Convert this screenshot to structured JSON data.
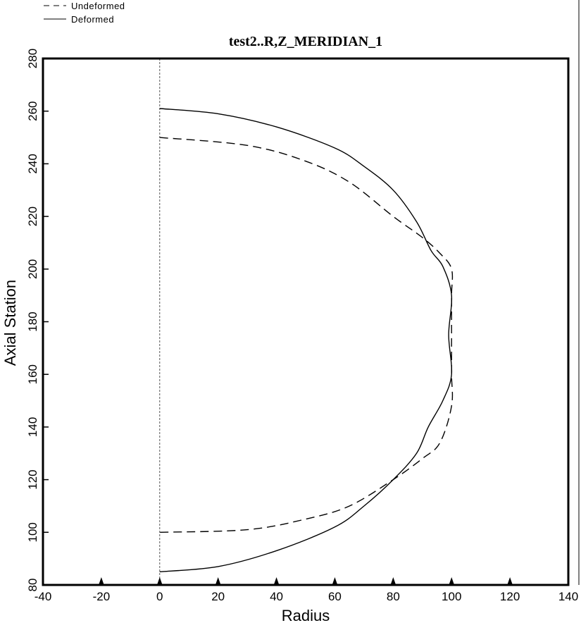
{
  "chart_data": {
    "type": "line",
    "title": "test2..R,Z_MERIDIAN_1",
    "xlabel": "Radius",
    "ylabel": "Axial Station",
    "xlim": [
      -40,
      140
    ],
    "ylim": [
      80,
      280
    ],
    "xticks": [
      -40,
      -20,
      0,
      20,
      40,
      60,
      80,
      100,
      120,
      140
    ],
    "yticks": [
      80,
      100,
      120,
      140,
      160,
      180,
      200,
      220,
      240,
      260,
      280
    ],
    "xtick_markers": [
      -20,
      0,
      20,
      40,
      60,
      80,
      100,
      120
    ],
    "reference_line_x": 0,
    "grid": false,
    "legend_position": "top-left",
    "colors": {
      "line": "#000000",
      "reference": "#555555"
    },
    "series": [
      {
        "name": "Undeformed",
        "style": "dashed",
        "x": [
          0,
          30,
          50,
          65,
          80,
          90,
          96,
          100,
          100,
          100,
          100,
          100,
          96,
          90,
          80,
          65,
          50,
          30,
          0
        ],
        "y": [
          250,
          247,
          241,
          233,
          220,
          212,
          206,
          200,
          190,
          175,
          160,
          148,
          134,
          128,
          120,
          110,
          105,
          101,
          100
        ]
      },
      {
        "name": "Deformed",
        "style": "solid",
        "x": [
          0,
          20,
          40,
          60,
          70,
          80,
          88,
          93,
          97,
          100,
          99,
          100,
          97,
          92,
          88,
          80,
          70,
          60,
          40,
          20,
          0
        ],
        "y": [
          261,
          259,
          254,
          246,
          239,
          230,
          218,
          207,
          201,
          190,
          175,
          160,
          150,
          140,
          130,
          120,
          110,
          102,
          93,
          87,
          85
        ]
      }
    ]
  }
}
